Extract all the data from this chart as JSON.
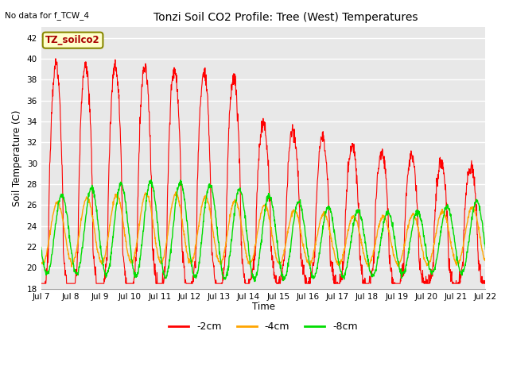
{
  "title": "Tonzi Soil CO2 Profile: Tree (West) Temperatures",
  "subtitle": "No data for f_TCW_4",
  "ylabel": "Soil Temperature (C)",
  "xlabel": "Time",
  "ylim": [
    18,
    43
  ],
  "yticks": [
    18,
    20,
    22,
    24,
    26,
    28,
    30,
    32,
    34,
    36,
    38,
    40,
    42
  ],
  "xtick_labels": [
    "Jul 7",
    "Jul 8",
    "Jul 9",
    "Jul 10",
    "Jul 11",
    "Jul 12",
    "Jul 13",
    "Jul 14",
    "Jul 15",
    "Jul 16",
    "Jul 17",
    "Jul 18",
    "Jul 19",
    "Jul 20",
    "Jul 21",
    "Jul 22"
  ],
  "legend_label": "TZ_soilco2",
  "series_labels": [
    "-2cm",
    "-4cm",
    "-8cm"
  ],
  "series_colors": [
    "#ff0000",
    "#ffa500",
    "#00dd00"
  ],
  "fig_bg_color": "#ffffff",
  "plot_bg_color": "#e8e8e8",
  "grid_color": "#ffffff",
  "n_points": 1500
}
